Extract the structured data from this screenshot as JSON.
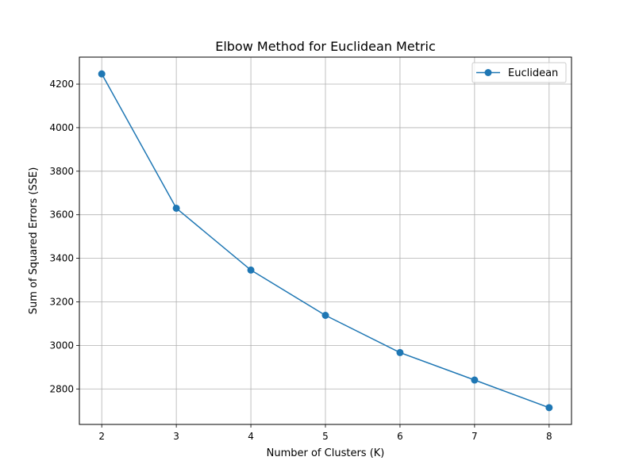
{
  "chart_data": {
    "type": "line",
    "title": "Elbow Method for Euclidean Metric",
    "xlabel": "Number of Clusters (K)",
    "ylabel": "Sum of Squared Errors (SSE)",
    "x": [
      2,
      3,
      4,
      5,
      6,
      7,
      8
    ],
    "series": [
      {
        "name": "Euclidean",
        "values": [
          4247,
          3630,
          3346,
          3138,
          2967,
          2841,
          2714
        ],
        "color": "#1f77b4",
        "marker": "circle"
      }
    ],
    "xticks": [
      2,
      3,
      4,
      5,
      6,
      7,
      8
    ],
    "yticks": [
      2800,
      3000,
      3200,
      3400,
      3600,
      3800,
      4000,
      4200
    ],
    "xlim": [
      1.7,
      8.3
    ],
    "ylim": [
      2637,
      4324
    ],
    "grid": true,
    "legend_position": "top-right"
  }
}
